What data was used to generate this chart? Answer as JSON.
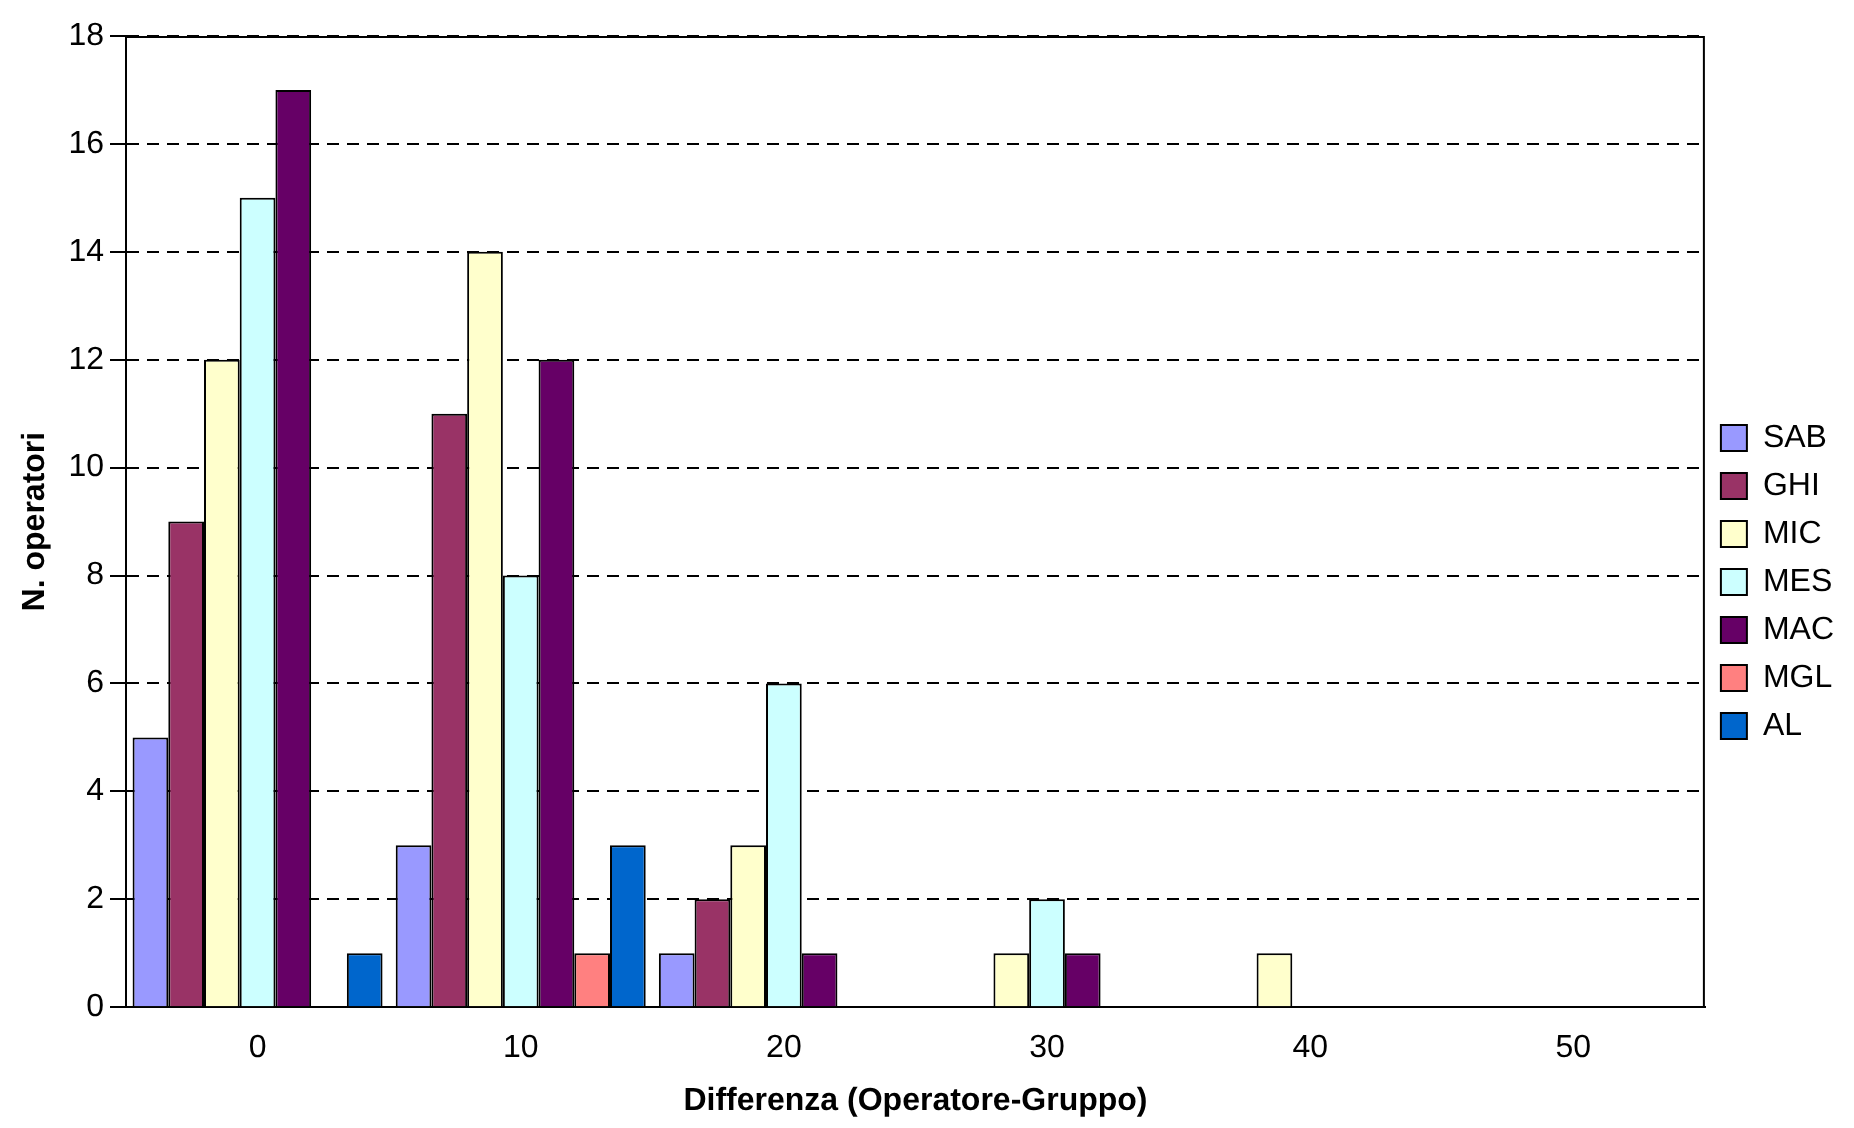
{
  "chart_data": {
    "type": "bar",
    "xlabel": "Differenza (Operatore-Gruppo)",
    "ylabel": "N. operatori",
    "categories": [
      "0",
      "10",
      "20",
      "30",
      "40",
      "50"
    ],
    "series": [
      {
        "name": "SAB",
        "color": "#9999ff",
        "values": [
          5,
          3,
          1,
          0,
          0,
          0
        ]
      },
      {
        "name": "GHI",
        "color": "#993366",
        "values": [
          9,
          11,
          2,
          0,
          0,
          0
        ]
      },
      {
        "name": "MIC",
        "color": "#ffffcc",
        "values": [
          12,
          14,
          3,
          1,
          1,
          0
        ]
      },
      {
        "name": "MES",
        "color": "#ccffff",
        "values": [
          15,
          8,
          6,
          2,
          0,
          0
        ]
      },
      {
        "name": "MAC",
        "color": "#660066",
        "values": [
          17,
          12,
          1,
          1,
          0,
          0
        ]
      },
      {
        "name": "MGL",
        "color": "#ff8080",
        "values": [
          0,
          1,
          0,
          0,
          0,
          0
        ]
      },
      {
        "name": "AL",
        "color": "#0066cc",
        "values": [
          1,
          3,
          0,
          0,
          0,
          0
        ]
      }
    ],
    "ylim": [
      0,
      18
    ],
    "yticks": [
      0,
      2,
      4,
      6,
      8,
      10,
      12,
      14,
      16,
      18
    ],
    "grid": "y",
    "legend": "right"
  }
}
